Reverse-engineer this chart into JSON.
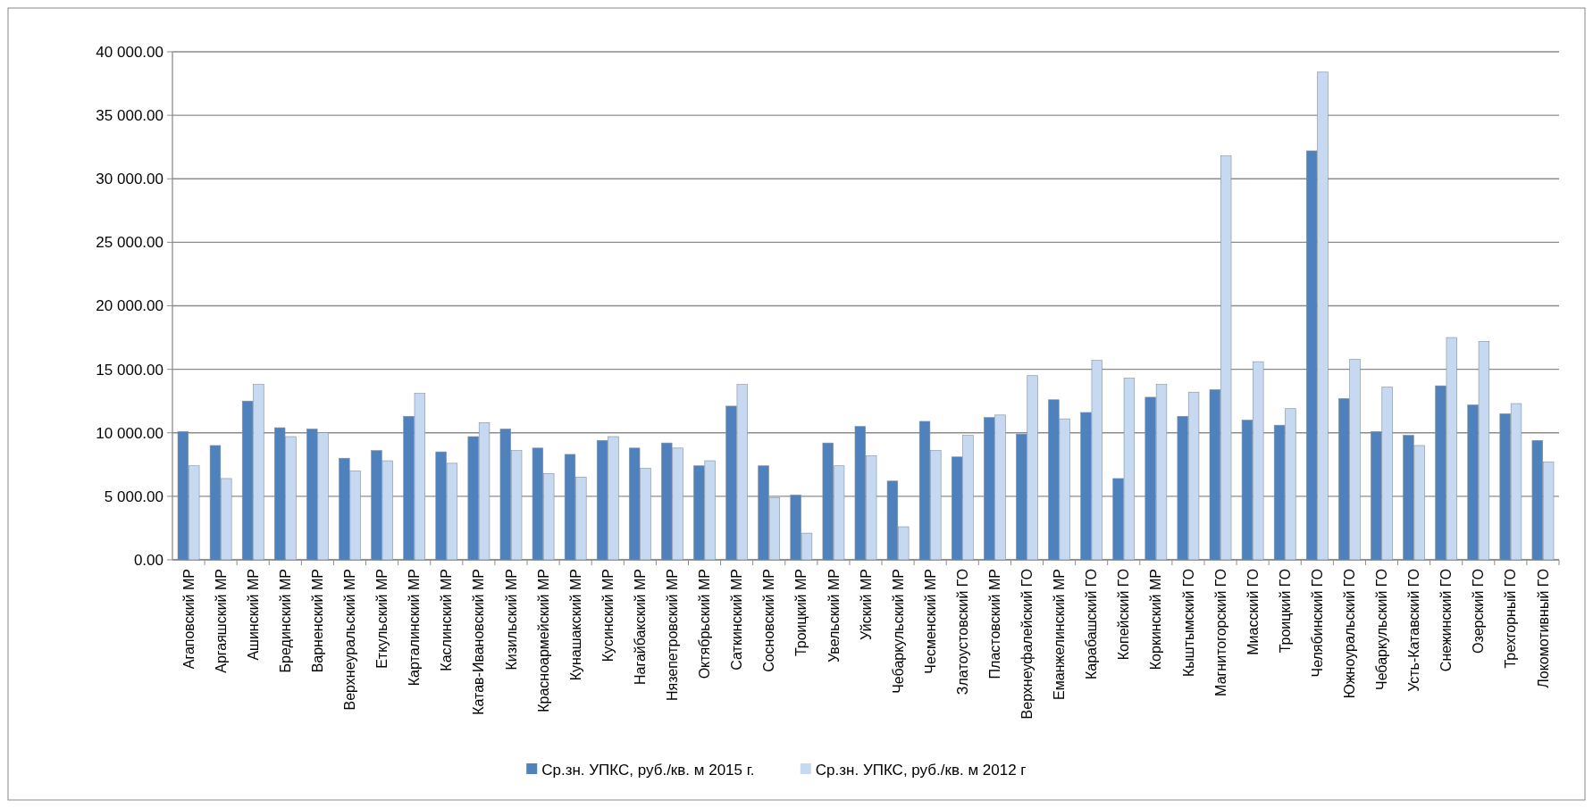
{
  "chart_data": {
    "type": "bar",
    "categories": [
      "Агаповский МР",
      "Аргаяшский МР",
      "Ашинский МР",
      "Брединский МР",
      "Варненский МР",
      "Верхнеуральский МР",
      "Еткульский МР",
      "Карталинский МР",
      "Каслинский МР",
      "Катав-Ивановский МР",
      "Кизильский МР",
      "Красноармейский МР",
      "Кунашакский МР",
      "Кусинский МР",
      "Нагайбакский МР",
      "Нязепетровский МР",
      "Октябрьский МР",
      "Саткинский МР",
      "Сосновский МР",
      "Троицкий МР",
      "Увельский МР",
      "Уйский МР",
      "Чебаркульский МР",
      "Чесменский МР",
      "Златоустовский ГО",
      "Пластовский МР",
      "Верхнеуфалейский ГО",
      "Еманжелинский МР",
      "Карабашский ГО",
      "Копейский ГО",
      "Коркинский МР",
      "Кыштымский ГО",
      "Магнитогорский ГО",
      "Миасский ГО",
      "Троицкий ГО",
      "Челябинский ГО",
      "Южноуральский ГО",
      "Чебаркульский ГО",
      "Усть-Катавский ГО",
      "Снежинский ГО",
      "Озерский ГО",
      "Трехгорный ГО",
      "Локомотивный ГО"
    ],
    "series": [
      {
        "name": "Ср.зн. УПКС, руб./кв. м 2015 г.",
        "color": "#4f81bd",
        "values": [
          10100,
          9000,
          12500,
          10400,
          10300,
          8000,
          8600,
          11300,
          8500,
          9700,
          10300,
          8800,
          8300,
          9400,
          8800,
          9200,
          7400,
          12100,
          7400,
          5100,
          9200,
          10500,
          6200,
          10900,
          8100,
          11200,
          9900,
          12600,
          11600,
          6400,
          12800,
          11300,
          13400,
          11000,
          10600,
          32200,
          12700,
          10100,
          9800,
          13700,
          12200,
          11500,
          9400
        ]
      },
      {
        "name": "Ср.зн. УПКС, руб./кв. м 2012 г",
        "color": "#c6d9f1",
        "values": [
          7400,
          6400,
          13800,
          9700,
          10000,
          7000,
          7800,
          13100,
          7600,
          10800,
          8600,
          6800,
          6500,
          9700,
          7200,
          8800,
          7800,
          13800,
          4900,
          2100,
          7400,
          8200,
          2600,
          8600,
          9800,
          11400,
          14500,
          11100,
          15700,
          14300,
          13800,
          13200,
          31800,
          15600,
          11900,
          38400,
          15800,
          13600,
          9000,
          17500,
          17200,
          12300,
          7700
        ]
      }
    ],
    "ylim": [
      0,
      40000
    ],
    "yticks": [
      {
        "value": 0,
        "label": "0.00"
      },
      {
        "value": 5000,
        "label": "5 000.00"
      },
      {
        "value": 10000,
        "label": "10 000.00"
      },
      {
        "value": 15000,
        "label": "15 000.00"
      },
      {
        "value": 20000,
        "label": "20 000.00"
      },
      {
        "value": 25000,
        "label": "25 000.00"
      },
      {
        "value": 30000,
        "label": "30 000.00"
      },
      {
        "value": 35000,
        "label": "35 000.00"
      },
      {
        "value": 40000,
        "label": "40 000.00"
      }
    ],
    "grid": true,
    "legend": "bottom"
  }
}
